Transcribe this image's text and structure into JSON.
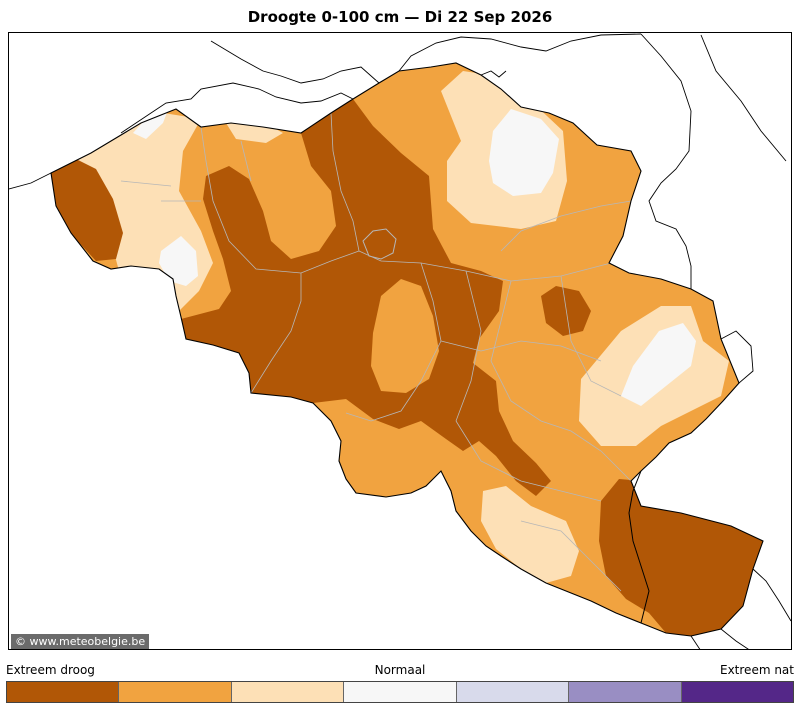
{
  "title": "Droogte 0-100 cm  —  Di 22 Sep 2026",
  "credit": "© www.meteobelgie.be",
  "legend": {
    "left_label": "Extreem droog",
    "mid_label": "Normaal",
    "right_label": "Extreem nat",
    "classes": [
      {
        "color": "#b15706"
      },
      {
        "color": "#f1a340"
      },
      {
        "color": "#fde0b6"
      },
      {
        "color": "#f7f7f7"
      },
      {
        "color": "#d8daeb"
      },
      {
        "color": "#998ec3"
      },
      {
        "color": "#542788"
      }
    ]
  },
  "colors": {
    "extreme_dry": "#b15706",
    "dry": "#f1a340",
    "slightly_dry": "#fde0b6",
    "normal": "#f7f7f7"
  }
}
